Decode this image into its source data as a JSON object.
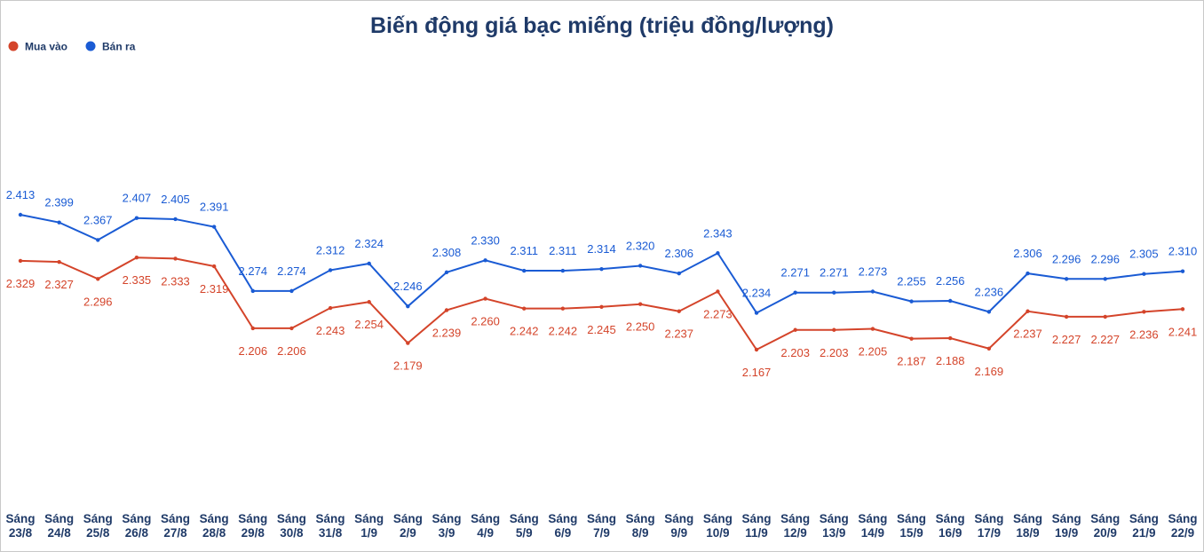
{
  "chart_data": {
    "type": "line",
    "title": "Biến động giá bạc miếng (triệu đồng/lượng)",
    "categories": [
      "Sáng 23/8",
      "Sáng 24/8",
      "Sáng 25/8",
      "Sáng 26/8",
      "Sáng 27/8",
      "Sáng 28/8",
      "Sáng 29/8",
      "Sáng 30/8",
      "Sáng 31/8",
      "Sáng 1/9",
      "Sáng 2/9",
      "Sáng 3/9",
      "Sáng 4/9",
      "Sáng 5/9",
      "Sáng 6/9",
      "Sáng 7/9",
      "Sáng 8/9",
      "Sáng 9/9",
      "Sáng 10/9",
      "Sáng 11/9",
      "Sáng 12/9",
      "Sáng 13/9",
      "Sáng 14/9",
      "Sáng 15/9",
      "Sáng 16/9",
      "Sáng 17/9",
      "Sáng 18/9",
      "Sáng 19/9",
      "Sáng 20/9",
      "Sáng 21/9",
      "Sáng 22/9"
    ],
    "legend": "top-left",
    "series": [
      {
        "name": "Mua vào",
        "color": "#d4442a",
        "values": [
          2.329,
          2.327,
          2.296,
          2.335,
          2.333,
          2.319,
          2.206,
          2.206,
          2.243,
          2.254,
          2.179,
          2.239,
          2.26,
          2.242,
          2.242,
          2.245,
          2.25,
          2.237,
          2.273,
          2.167,
          2.203,
          2.203,
          2.205,
          2.187,
          2.188,
          2.169,
          2.237,
          2.227,
          2.227,
          2.236,
          2.241
        ],
        "value_labels": [
          "2.329",
          "2.327",
          "2.296",
          "2.335",
          "2.333",
          "2.319",
          "2.206",
          "2.206",
          "2.243",
          "2.254",
          "2.179",
          "2.239",
          "2.260",
          "2.242",
          "2.242",
          "2.245",
          "2.250",
          "2.237",
          "2.273",
          "2.167",
          "2.203",
          "2.203",
          "2.205",
          "2.187",
          "2.188",
          "2.169",
          "2.237",
          "2.227",
          "2.227",
          "2.236",
          "2.241"
        ]
      },
      {
        "name": "Bán ra",
        "color": "#1a5bd4",
        "values": [
          2.413,
          2.399,
          2.367,
          2.407,
          2.405,
          2.391,
          2.274,
          2.274,
          2.312,
          2.324,
          2.246,
          2.308,
          2.33,
          2.311,
          2.311,
          2.314,
          2.32,
          2.306,
          2.343,
          2.234,
          2.271,
          2.271,
          2.273,
          2.255,
          2.256,
          2.236,
          2.306,
          2.296,
          2.296,
          2.305,
          2.31
        ],
        "value_labels": [
          "2.413",
          "2.399",
          "2.367",
          "2.407",
          "2.405",
          "2.391",
          "2.274",
          "2.274",
          "2.312",
          "2.324",
          "2.246",
          "2.308",
          "2.330",
          "2.311",
          "2.311",
          "2.314",
          "2.320",
          "2.306",
          "2.343",
          "2.234",
          "2.271",
          "2.271",
          "2.273",
          "2.255",
          "2.256",
          "2.236",
          "2.306",
          "2.296",
          "2.296",
          "2.305",
          "2.310"
        ]
      }
    ]
  }
}
